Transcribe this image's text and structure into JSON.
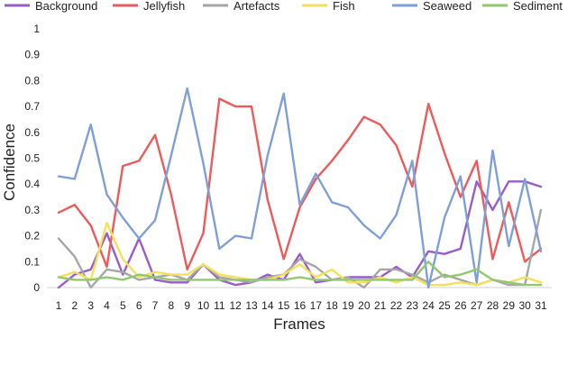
{
  "chart_data": {
    "type": "line",
    "title": "",
    "xlabel": "Frames",
    "ylabel": "Confidence",
    "ylim": [
      0,
      1
    ],
    "yticks": [
      "0",
      "0.1",
      "0.2",
      "0.3",
      "0.4",
      "0.5",
      "0.6",
      "0.7",
      "0.8",
      "0.9",
      "1"
    ],
    "categories": [
      "1",
      "2",
      "3",
      "4",
      "5",
      "6",
      "7",
      "8",
      "9",
      "10",
      "11",
      "12",
      "13",
      "14",
      "15",
      "16",
      "17",
      "18",
      "19",
      "20",
      "21",
      "22",
      "23",
      "24",
      "25",
      "26",
      "27",
      "28",
      "29",
      "30",
      "31"
    ],
    "grid": false,
    "legend": "top",
    "series": [
      {
        "name": "Background",
        "color": "#9A5CC8",
        "values": [
          0.0,
          0.05,
          0.07,
          0.21,
          0.05,
          0.19,
          0.03,
          0.02,
          0.02,
          0.09,
          0.03,
          0.01,
          0.02,
          0.05,
          0.03,
          0.13,
          0.02,
          0.03,
          0.04,
          0.04,
          0.04,
          0.08,
          0.04,
          0.14,
          0.13,
          0.15,
          0.41,
          0.3,
          0.41,
          0.41,
          0.39
        ]
      },
      {
        "name": "Jellyfish",
        "color": "#EE5A5A",
        "values": [
          0.29,
          0.32,
          0.24,
          0.08,
          0.47,
          0.49,
          0.59,
          0.36,
          0.07,
          0.21,
          0.73,
          0.7,
          0.7,
          0.34,
          0.11,
          0.31,
          0.42,
          0.49,
          0.57,
          0.66,
          0.63,
          0.55,
          0.39,
          0.71,
          0.52,
          0.35,
          0.49,
          0.11,
          0.33,
          0.1,
          0.15
        ]
      },
      {
        "name": "Artefacts",
        "color": "#A6A6A6",
        "values": [
          0.19,
          0.12,
          0.0,
          0.07,
          0.06,
          0.03,
          0.04,
          0.05,
          0.03,
          0.09,
          0.04,
          0.03,
          0.02,
          0.04,
          0.05,
          0.11,
          0.08,
          0.03,
          0.04,
          0.0,
          0.07,
          0.07,
          0.05,
          0.02,
          0.05,
          0.03,
          0.01,
          0.03,
          0.01,
          0.01,
          0.3
        ]
      },
      {
        "name": "Fish",
        "color": "#F5E05A",
        "values": [
          0.04,
          0.06,
          0.03,
          0.25,
          0.11,
          0.04,
          0.06,
          0.05,
          0.05,
          0.09,
          0.05,
          0.04,
          0.03,
          0.03,
          0.05,
          0.09,
          0.04,
          0.07,
          0.02,
          0.02,
          0.04,
          0.02,
          0.04,
          0.01,
          0.01,
          0.02,
          0.01,
          0.03,
          0.02,
          0.04,
          0.02
        ]
      },
      {
        "name": "Seaweed",
        "color": "#7E9FD8",
        "values": [
          0.43,
          0.42,
          0.63,
          0.36,
          0.27,
          0.19,
          0.26,
          0.51,
          0.77,
          0.48,
          0.15,
          0.2,
          0.19,
          0.51,
          0.75,
          0.32,
          0.44,
          0.33,
          0.31,
          0.24,
          0.19,
          0.28,
          0.49,
          0.0,
          0.27,
          0.43,
          0.02,
          0.53,
          0.16,
          0.42,
          0.14
        ]
      },
      {
        "name": "Sediment",
        "color": "#92C770",
        "values": [
          0.04,
          0.03,
          0.03,
          0.04,
          0.03,
          0.05,
          0.04,
          0.03,
          0.03,
          0.03,
          0.03,
          0.03,
          0.03,
          0.03,
          0.03,
          0.04,
          0.03,
          0.03,
          0.03,
          0.03,
          0.03,
          0.03,
          0.03,
          0.1,
          0.04,
          0.05,
          0.07,
          0.03,
          0.02,
          0.01,
          0.01
        ]
      }
    ]
  }
}
